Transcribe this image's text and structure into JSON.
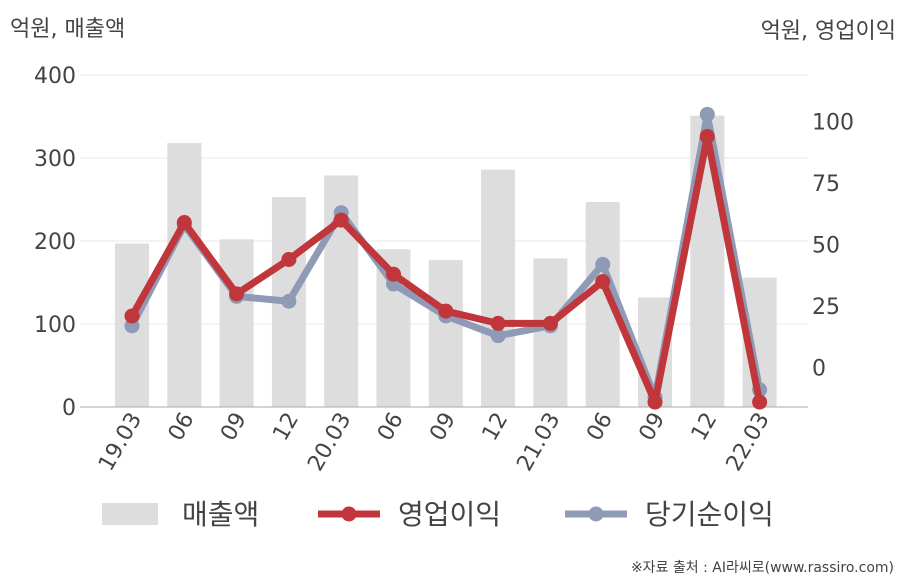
{
  "chart_data": {
    "type": "bar",
    "left_axis_label": "억원, 매출액",
    "right_axis_label": "억원, 영업이익",
    "categories": [
      "19.03",
      "06",
      "09",
      "12",
      "20.03",
      "06",
      "09",
      "12",
      "21.03",
      "06",
      "09",
      "12",
      "22.03"
    ],
    "left_ylim": [
      0,
      400
    ],
    "left_ticks": [
      0,
      100,
      200,
      300,
      400
    ],
    "right_ylim": [
      -16,
      119
    ],
    "right_ticks": [
      0,
      25,
      50,
      75,
      100
    ],
    "grid": true,
    "legend_position": "bottom",
    "series": [
      {
        "name": "매출액",
        "type": "bar",
        "axis": "left",
        "color": "#dddddd",
        "values": [
          197,
          318,
          202,
          253,
          279,
          190,
          177,
          286,
          179,
          247,
          132,
          351,
          156
        ]
      },
      {
        "name": "영업이익",
        "type": "line",
        "axis": "right",
        "color": "#c0363a",
        "values": [
          21,
          59,
          30,
          44,
          60,
          38,
          23,
          18,
          18,
          35,
          -14,
          94,
          -14
        ]
      },
      {
        "name": "당기순이익",
        "type": "line",
        "axis": "right",
        "color": "#8e9ab6",
        "values": [
          17,
          58,
          29,
          27,
          63,
          34,
          21,
          13,
          17,
          42,
          -12,
          103,
          -9
        ]
      }
    ]
  },
  "source_note": "※자료 출처 : AI라씨로(www.rassiro.com)"
}
